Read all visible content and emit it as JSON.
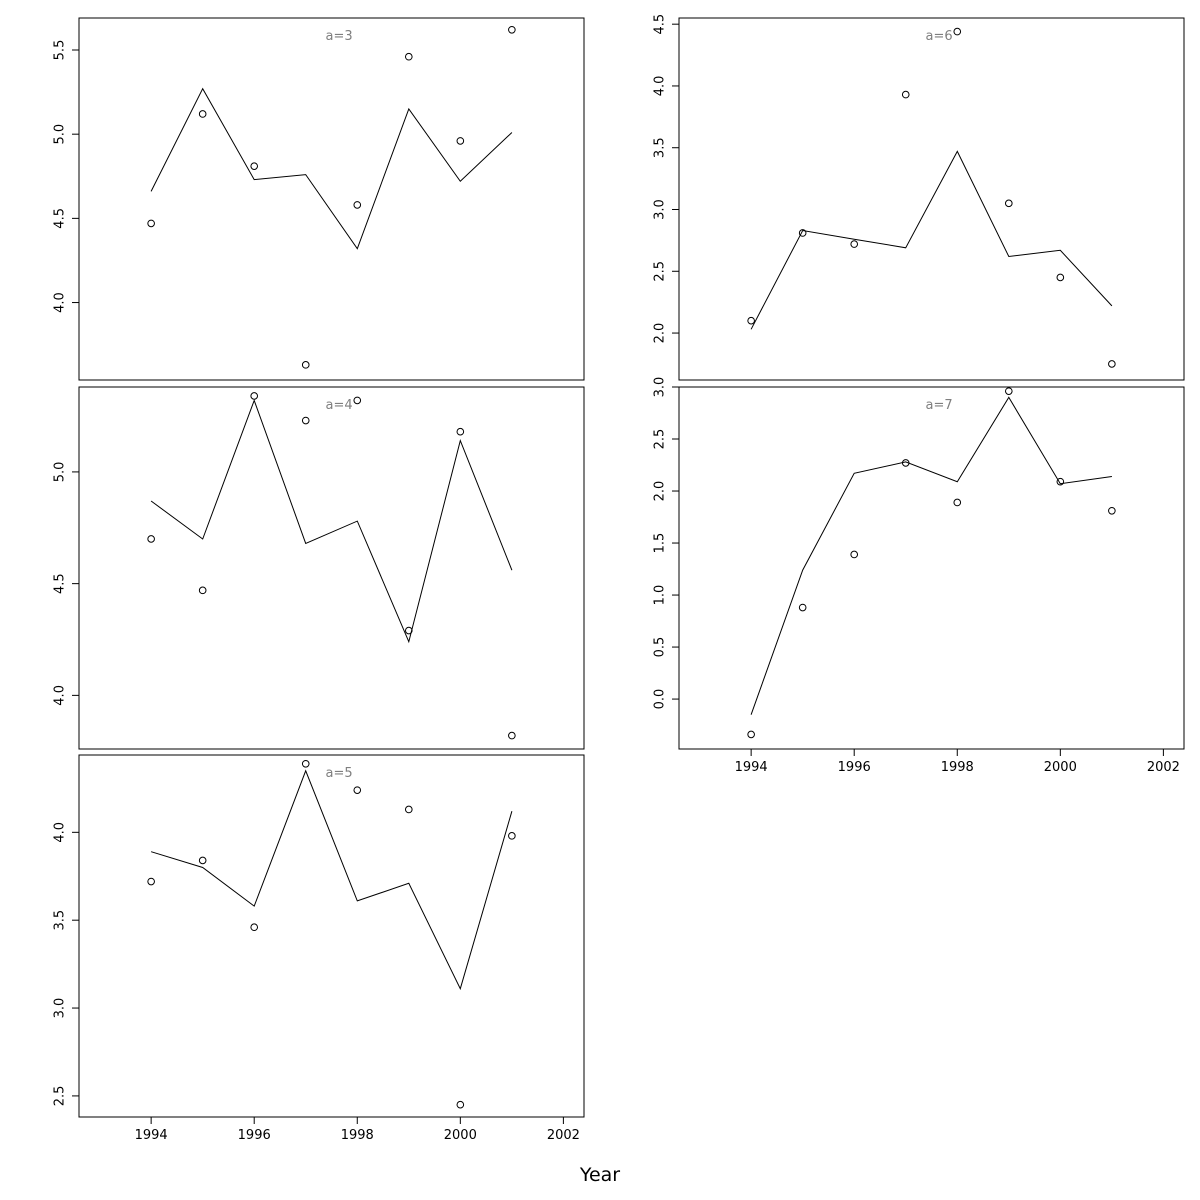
{
  "figure": {
    "xlabel": "Year",
    "panel_label_color": "#7f7f7f",
    "line_color": "#000000",
    "point_color": "#000000"
  },
  "chart_data": [
    {
      "type": "line",
      "label": "a=3",
      "x": [
        1994,
        1995,
        1996,
        1997,
        1998,
        1999,
        2000,
        2001
      ],
      "xlim": [
        1992.6,
        2002.4
      ],
      "ylim": [
        3.54,
        5.69
      ],
      "xticks": [
        1994,
        1996,
        1998,
        2000,
        2002
      ],
      "yticks": [
        4.0,
        4.5,
        5.0,
        5.5
      ],
      "ytick_labels": [
        "4.0",
        "4.5",
        "5.0",
        "5.5"
      ],
      "show_xaxis": false,
      "series": [
        {
          "kind": "line",
          "values": [
            4.66,
            5.27,
            4.73,
            4.76,
            4.32,
            5.15,
            4.72,
            5.01
          ]
        },
        {
          "kind": "points",
          "values": [
            4.47,
            5.12,
            4.81,
            3.63,
            4.58,
            5.46,
            4.96,
            5.62
          ]
        }
      ]
    },
    {
      "type": "line",
      "label": "a=4",
      "x": [
        1994,
        1995,
        1996,
        1997,
        1998,
        1999,
        2000,
        2001
      ],
      "xlim": [
        1992.6,
        2002.4
      ],
      "ylim": [
        3.76,
        5.38
      ],
      "xticks": [
        1994,
        1996,
        1998,
        2000,
        2002
      ],
      "yticks": [
        4.0,
        4.5,
        5.0
      ],
      "ytick_labels": [
        "4.0",
        "4.5",
        "5.0"
      ],
      "show_xaxis": false,
      "series": [
        {
          "kind": "line",
          "values": [
            4.87,
            4.7,
            5.32,
            4.68,
            4.78,
            4.24,
            5.14,
            4.56
          ]
        },
        {
          "kind": "points",
          "values": [
            4.7,
            4.47,
            5.34,
            5.23,
            5.32,
            4.29,
            5.18,
            3.82
          ]
        }
      ]
    },
    {
      "type": "line",
      "label": "a=5",
      "x": [
        1994,
        1995,
        1996,
        1997,
        1998,
        1999,
        2000,
        2001
      ],
      "xlim": [
        1992.6,
        2002.4
      ],
      "ylim": [
        2.38,
        4.44
      ],
      "xticks": [
        1994,
        1996,
        1998,
        2000,
        2002
      ],
      "xtick_labels": [
        "1994",
        "1996",
        "1998",
        "2000",
        "2002"
      ],
      "yticks": [
        2.5,
        3.0,
        3.5,
        4.0
      ],
      "ytick_labels": [
        "2.5",
        "3.0",
        "3.5",
        "4.0"
      ],
      "show_xaxis": true,
      "series": [
        {
          "kind": "line",
          "values": [
            3.89,
            3.8,
            3.58,
            4.35,
            3.61,
            3.71,
            3.11,
            4.12
          ]
        },
        {
          "kind": "points",
          "values": [
            3.72,
            3.84,
            3.46,
            4.39,
            4.24,
            4.13,
            2.45,
            3.98
          ]
        }
      ]
    },
    {
      "type": "line",
      "label": "a=6",
      "x": [
        1994,
        1995,
        1996,
        1997,
        1998,
        1999,
        2000,
        2001
      ],
      "xlim": [
        1992.6,
        2002.4
      ],
      "ylim": [
        1.62,
        4.55
      ],
      "xticks": [
        1994,
        1996,
        1998,
        2000,
        2002
      ],
      "yticks": [
        2.0,
        2.5,
        3.0,
        3.5,
        4.0,
        4.5
      ],
      "ytick_labels": [
        "2.0",
        "2.5",
        "3.0",
        "3.5",
        "4.0",
        "4.5"
      ],
      "show_xaxis": false,
      "series": [
        {
          "kind": "line",
          "values": [
            2.03,
            2.83,
            2.76,
            2.69,
            3.47,
            2.62,
            2.67,
            2.22
          ]
        },
        {
          "kind": "points",
          "values": [
            2.1,
            2.81,
            2.72,
            3.93,
            4.44,
            3.05,
            2.45,
            1.75
          ]
        }
      ]
    },
    {
      "type": "line",
      "label": "a=7",
      "x": [
        1994,
        1995,
        1996,
        1997,
        1998,
        1999,
        2000,
        2001
      ],
      "xlim": [
        1992.6,
        2002.4
      ],
      "ylim": [
        -0.48,
        3.0
      ],
      "xticks": [
        1994,
        1996,
        1998,
        2000,
        2002
      ],
      "xtick_labels": [
        "1994",
        "1996",
        "1998",
        "2000",
        "2002"
      ],
      "yticks": [
        0.0,
        0.5,
        1.0,
        1.5,
        2.0,
        2.5,
        3.0
      ],
      "ytick_labels": [
        "0.0",
        "0.5",
        "1.0",
        "1.5",
        "2.0",
        "2.5",
        "3.0"
      ],
      "show_xaxis": true,
      "series": [
        {
          "kind": "line",
          "values": [
            -0.15,
            1.24,
            2.17,
            2.28,
            2.09,
            2.9,
            2.07,
            2.14
          ]
        },
        {
          "kind": "points",
          "values": [
            -0.34,
            0.88,
            1.39,
            2.27,
            1.89,
            2.96,
            2.09,
            1.81
          ]
        }
      ]
    }
  ]
}
